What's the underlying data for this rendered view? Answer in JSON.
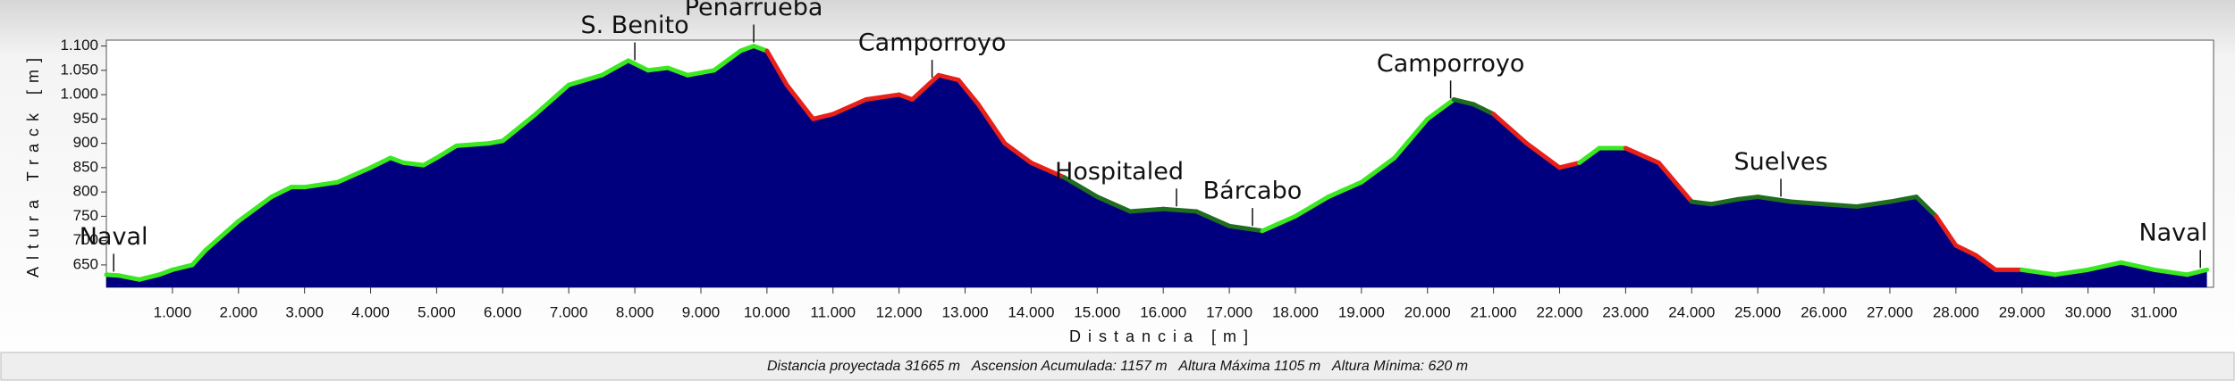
{
  "chart_data": {
    "type": "area",
    "x_label": "Distancia [m]",
    "y_label": "Altura Track [m]",
    "footer": "Distancia proyectada 31665 m   Ascension Acumulada: 1157 m   Altura Máxima 1105 m   Altura Mínima: 620 m",
    "x": [
      0,
      200,
      500,
      800,
      1000,
      1300,
      1500,
      2000,
      2500,
      2800,
      3000,
      3500,
      4000,
      4300,
      4500,
      4800,
      5000,
      5300,
      5800,
      6000,
      6500,
      7000,
      7500,
      7900,
      8200,
      8500,
      8800,
      9200,
      9600,
      9800,
      10000,
      10300,
      10700,
      11000,
      11500,
      12000,
      12200,
      12600,
      12900,
      13200,
      13600,
      14000,
      14500,
      15000,
      15500,
      16000,
      16500,
      17000,
      17500,
      18000,
      18500,
      19000,
      19500,
      20000,
      20400,
      20700,
      21000,
      21500,
      22000,
      22300,
      22600,
      23000,
      23500,
      24000,
      24300,
      24700,
      25000,
      25500,
      26000,
      26500,
      27000,
      27400,
      27700,
      28000,
      28300,
      28600,
      29000,
      29500,
      30000,
      30500,
      31000,
      31500,
      31800
    ],
    "values": [
      630,
      628,
      620,
      630,
      640,
      650,
      680,
      740,
      790,
      810,
      810,
      820,
      850,
      870,
      860,
      855,
      870,
      895,
      900,
      905,
      960,
      1020,
      1040,
      1070,
      1050,
      1055,
      1040,
      1050,
      1090,
      1100,
      1090,
      1020,
      950,
      960,
      990,
      1000,
      990,
      1040,
      1030,
      980,
      900,
      860,
      830,
      790,
      760,
      765,
      760,
      730,
      720,
      750,
      790,
      820,
      870,
      950,
      990,
      980,
      960,
      900,
      850,
      860,
      890,
      890,
      860,
      780,
      775,
      785,
      790,
      780,
      775,
      770,
      780,
      790,
      750,
      690,
      670,
      640,
      640,
      630,
      640,
      655,
      640,
      630,
      640
    ],
    "fill_color": "#00007f",
    "segment_colors": [
      "#39e81f",
      "#39e81f",
      "#39e81f",
      "#39e81f",
      "#39e81f",
      "#39e81f",
      "#39e81f",
      "#39e81f",
      "#39e81f",
      "#39e81f",
      "#39e81f",
      "#39e81f",
      "#39e81f",
      "#39e81f",
      "#39e81f",
      "#39e81f",
      "#39e81f",
      "#39e81f",
      "#39e81f",
      "#39e81f",
      "#39e81f",
      "#39e81f",
      "#39e81f",
      "#39e81f",
      "#39e81f",
      "#39e81f",
      "#39e81f",
      "#39e81f",
      "#39e81f",
      "#39e81f",
      "#e8201a",
      "#e8201a",
      "#e8201a",
      "#e8201a",
      "#e8201a",
      "#e8201a",
      "#e8201a",
      "#e8201a",
      "#e8201a",
      "#e8201a",
      "#e8201a",
      "#e8201a",
      "#1f6e1f",
      "#1f6e1f",
      "#1f6e1f",
      "#1f6e1f",
      "#1f6e1f",
      "#1f6e1f",
      "#39e81f",
      "#39e81f",
      "#39e81f",
      "#39e81f",
      "#39e81f",
      "#39e81f",
      "#1f6e1f",
      "#1f6e1f",
      "#e8201a",
      "#e8201a",
      "#e8201a",
      "#39e81f",
      "#39e81f",
      "#e8201a",
      "#e8201a",
      "#1f6e1f",
      "#1f6e1f",
      "#1f6e1f",
      "#1f6e1f",
      "#1f6e1f",
      "#1f6e1f",
      "#1f6e1f",
      "#1f6e1f",
      "#1f6e1f",
      "#e8201a",
      "#e8201a",
      "#e8201a",
      "#e8201a",
      "#39e81f",
      "#39e81f",
      "#39e81f",
      "#39e81f",
      "#39e81f",
      "#39e81f"
    ],
    "xlim": [
      0,
      31900
    ],
    "ylim": [
      604,
      1112
    ],
    "xticks": [
      {
        "value": 1000,
        "label": "1.000"
      },
      {
        "value": 2000,
        "label": "2.000"
      },
      {
        "value": 3000,
        "label": "3.000"
      },
      {
        "value": 4000,
        "label": "4.000"
      },
      {
        "value": 5000,
        "label": "5.000"
      },
      {
        "value": 6000,
        "label": "6.000"
      },
      {
        "value": 7000,
        "label": "7.000"
      },
      {
        "value": 8000,
        "label": "8.000"
      },
      {
        "value": 9000,
        "label": "9.000"
      },
      {
        "value": 10000,
        "label": "10.000"
      },
      {
        "value": 11000,
        "label": "11.000"
      },
      {
        "value": 12000,
        "label": "12.000"
      },
      {
        "value": 13000,
        "label": "13.000"
      },
      {
        "value": 14000,
        "label": "14.000"
      },
      {
        "value": 15000,
        "label": "15.000"
      },
      {
        "value": 16000,
        "label": "16.000"
      },
      {
        "value": 17000,
        "label": "17.000"
      },
      {
        "value": 18000,
        "label": "18.000"
      },
      {
        "value": 19000,
        "label": "19.000"
      },
      {
        "value": 20000,
        "label": "20.000"
      },
      {
        "value": 21000,
        "label": "21.000"
      },
      {
        "value": 22000,
        "label": "22.000"
      },
      {
        "value": 23000,
        "label": "23.000"
      },
      {
        "value": 24000,
        "label": "24.000"
      },
      {
        "value": 25000,
        "label": "25.000"
      },
      {
        "value": 26000,
        "label": "26.000"
      },
      {
        "value": 27000,
        "label": "27.000"
      },
      {
        "value": 28000,
        "label": "28.000"
      },
      {
        "value": 29000,
        "label": "29.000"
      },
      {
        "value": 30000,
        "label": "30.000"
      },
      {
        "value": 31000,
        "label": "31.000"
      }
    ],
    "yticks": [
      650,
      700,
      750,
      800,
      850,
      900,
      950,
      {
        "value": 1000,
        "label": "1.000"
      },
      {
        "value": 1050,
        "label": "1.050"
      },
      {
        "value": 1100,
        "label": "1.100"
      }
    ],
    "annotations": [
      {
        "text": "Naval",
        "x": 110
      },
      {
        "text": "S. Benito",
        "x": 8000
      },
      {
        "text": "Peñarrueba",
        "x": 9800
      },
      {
        "text": "Camporroyo",
        "x": 12500
      },
      {
        "text": "Hospitaled",
        "x": 16200
      },
      {
        "text": "Bárcabo",
        "x": 17350
      },
      {
        "text": "Camporroyo",
        "x": 20350
      },
      {
        "text": "Suelves",
        "x": 25350
      },
      {
        "text": "Naval",
        "x": 31700
      }
    ]
  }
}
